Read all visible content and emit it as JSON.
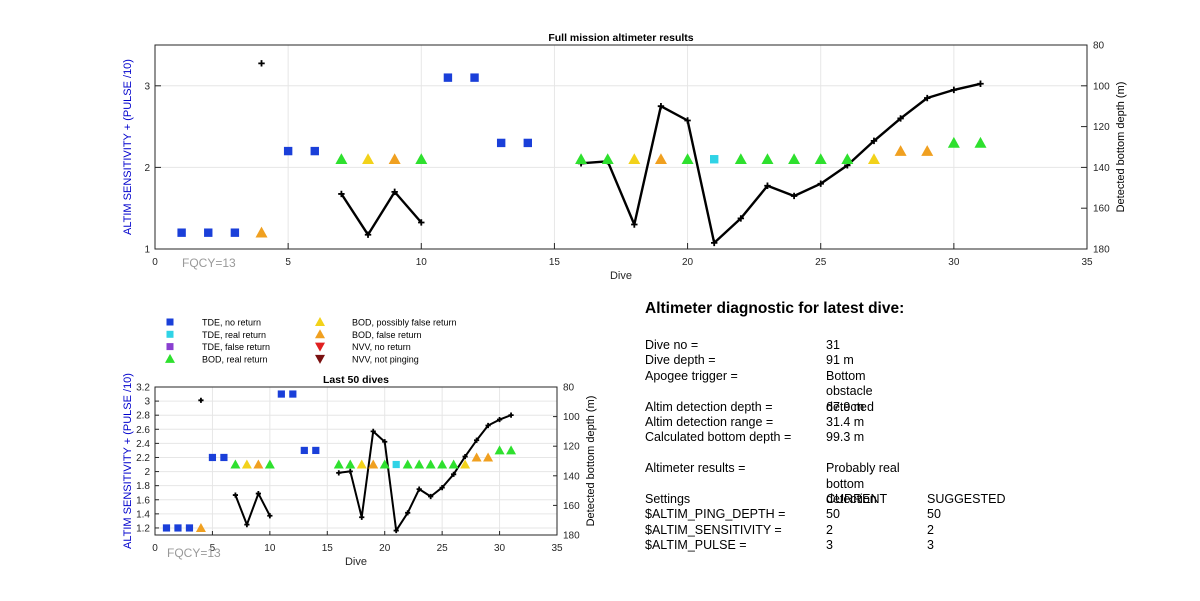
{
  "colors": {
    "blue_axis": "#0000cc",
    "tde_no_return": "#1a3fd9",
    "tde_real_return": "#2fd3e6",
    "tde_false_return": "#8a3fd0",
    "bod_real_return": "#2ee02e",
    "bod_possibly_false": "#f2d21a",
    "bod_false_return": "#f0a020",
    "nvv_no_return": "#e02020",
    "nvv_not_pinging": "#7a1010",
    "depth_line": "#000000",
    "grid": "#e6e6e6",
    "fqcy": "#999999"
  },
  "legend": [
    {
      "label": "TDE, no return",
      "marker": "square",
      "color_key": "tde_no_return"
    },
    {
      "label": "TDE, real return",
      "marker": "square",
      "color_key": "tde_real_return"
    },
    {
      "label": "TDE, false return",
      "marker": "square",
      "color_key": "tde_false_return"
    },
    {
      "label": "BOD, real return",
      "marker": "triangle-up",
      "color_key": "bod_real_return"
    },
    {
      "label": "BOD, possibly false return",
      "marker": "triangle-up",
      "color_key": "bod_possibly_false"
    },
    {
      "label": "BOD, false return",
      "marker": "triangle-up",
      "color_key": "bod_false_return"
    },
    {
      "label": "NVV, no return",
      "marker": "triangle-down",
      "color_key": "nvv_no_return"
    },
    {
      "label": "NVV, not pinging",
      "marker": "triangle-down",
      "color_key": "nvv_not_pinging"
    }
  ],
  "chart_data": [
    {
      "type": "scatter",
      "title": "Full mission altimeter results",
      "xlabel": "Dive",
      "ylabel": "ALTIM SENSITIVITY + (PULSE /10)",
      "y2label": "Detected bottom depth (m)",
      "xlim": [
        0,
        35
      ],
      "ylim": [
        1,
        3.5
      ],
      "y2lim": [
        80,
        180
      ],
      "y2_reversed": true,
      "xticks": [
        0,
        5,
        10,
        15,
        20,
        25,
        30,
        35
      ],
      "yticks": [
        1,
        2,
        3
      ],
      "y2ticks": [
        80,
        100,
        120,
        140,
        160,
        180
      ],
      "grid": true,
      "annotation": "FQCY=13"
    },
    {
      "type": "scatter",
      "title": "Last 50 dives",
      "xlabel": "Dive",
      "ylabel": "ALTIM SENSITIVITY + (PULSE /10)",
      "y2label": "Detected bottom depth (m)",
      "xlim": [
        0,
        35
      ],
      "ylim": [
        1.1,
        3.2
      ],
      "y2lim": [
        80,
        180
      ],
      "y2_reversed": true,
      "xticks": [
        0,
        5,
        10,
        15,
        20,
        25,
        30,
        35
      ],
      "yticks": [
        1.2,
        1.4,
        1.6,
        1.8,
        2,
        2.2,
        2.4,
        2.6,
        2.8,
        3,
        3.2
      ],
      "y2ticks": [
        80,
        100,
        120,
        140,
        160,
        180
      ],
      "grid": true,
      "annotation": "FQCY=13"
    }
  ],
  "shared_series": {
    "points": [
      {
        "dive": 1,
        "value": 1.2,
        "class": "tde_no_return"
      },
      {
        "dive": 2,
        "value": 1.2,
        "class": "tde_no_return"
      },
      {
        "dive": 3,
        "value": 1.2,
        "class": "tde_no_return"
      },
      {
        "dive": 4,
        "value": 1.2,
        "class": "bod_false_return"
      },
      {
        "dive": 5,
        "value": 2.2,
        "class": "tde_no_return"
      },
      {
        "dive": 6,
        "value": 2.2,
        "class": "tde_no_return"
      },
      {
        "dive": 7,
        "value": 2.1,
        "class": "bod_real_return"
      },
      {
        "dive": 8,
        "value": 2.1,
        "class": "bod_possibly_false"
      },
      {
        "dive": 9,
        "value": 2.1,
        "class": "bod_false_return"
      },
      {
        "dive": 10,
        "value": 2.1,
        "class": "bod_real_return"
      },
      {
        "dive": 11,
        "value": 3.1,
        "class": "tde_no_return"
      },
      {
        "dive": 12,
        "value": 3.1,
        "class": "tde_no_return"
      },
      {
        "dive": 13,
        "value": 2.3,
        "class": "tde_no_return"
      },
      {
        "dive": 14,
        "value": 2.3,
        "class": "tde_no_return"
      },
      {
        "dive": 16,
        "value": 2.1,
        "class": "bod_real_return"
      },
      {
        "dive": 17,
        "value": 2.1,
        "class": "bod_real_return"
      },
      {
        "dive": 18,
        "value": 2.1,
        "class": "bod_possibly_false"
      },
      {
        "dive": 19,
        "value": 2.1,
        "class": "bod_false_return"
      },
      {
        "dive": 20,
        "value": 2.1,
        "class": "bod_real_return"
      },
      {
        "dive": 21,
        "value": 2.1,
        "class": "tde_real_return"
      },
      {
        "dive": 22,
        "value": 2.1,
        "class": "bod_real_return"
      },
      {
        "dive": 23,
        "value": 2.1,
        "class": "bod_real_return"
      },
      {
        "dive": 24,
        "value": 2.1,
        "class": "bod_real_return"
      },
      {
        "dive": 25,
        "value": 2.1,
        "class": "bod_real_return"
      },
      {
        "dive": 26,
        "value": 2.1,
        "class": "bod_real_return"
      },
      {
        "dive": 27,
        "value": 2.1,
        "class": "bod_possibly_false"
      },
      {
        "dive": 28,
        "value": 2.2,
        "class": "bod_false_return"
      },
      {
        "dive": 29,
        "value": 2.2,
        "class": "bod_false_return"
      },
      {
        "dive": 30,
        "value": 2.3,
        "class": "bod_real_return"
      },
      {
        "dive": 31,
        "value": 2.3,
        "class": "bod_real_return"
      }
    ],
    "depth_segments": [
      [
        {
          "dive": 4,
          "depth": 89
        }
      ],
      [
        {
          "dive": 7,
          "depth": 153
        },
        {
          "dive": 8,
          "depth": 173
        },
        {
          "dive": 9,
          "depth": 152
        },
        {
          "dive": 10,
          "depth": 167
        }
      ],
      [
        {
          "dive": 16,
          "depth": 138
        },
        {
          "dive": 17,
          "depth": 137
        },
        {
          "dive": 18,
          "depth": 168
        },
        {
          "dive": 19,
          "depth": 110
        },
        {
          "dive": 20,
          "depth": 117
        },
        {
          "dive": 21,
          "depth": 177
        },
        {
          "dive": 22,
          "depth": 165
        },
        {
          "dive": 23,
          "depth": 149
        },
        {
          "dive": 24,
          "depth": 154
        },
        {
          "dive": 25,
          "depth": 148
        },
        {
          "dive": 26,
          "depth": 139
        },
        {
          "dive": 27,
          "depth": 127
        },
        {
          "dive": 28,
          "depth": 116
        },
        {
          "dive": 29,
          "depth": 106
        },
        {
          "dive": 30,
          "depth": 102
        },
        {
          "dive": 31,
          "depth": 99
        }
      ]
    ]
  },
  "diagnostic": {
    "title": "Altimeter diagnostic for latest dive:",
    "dive_no_label": "Dive no =",
    "dive_no_value": "31",
    "dive_depth_label": "Dive depth =",
    "dive_depth_value": "91 m",
    "apogee_label": "Apogee trigger =",
    "apogee_value": "Bottom obstacle detected",
    "altim_depth_label": "Altim detection depth =",
    "altim_depth_value": "67.9 m",
    "altim_range_label": "Altim detection range =",
    "altim_range_value": "31.4 m",
    "calc_depth_label": "Calculated bottom depth =",
    "calc_depth_value": "99.3 m",
    "results_label": "Altimeter results =",
    "results_value": "Probably real bottom detection",
    "settings_label": "Settings",
    "current_header": "CURRENT",
    "suggested_header": "SUGGESTED",
    "ping_depth_label": "$ALTIM_PING_DEPTH =",
    "ping_depth_current": "50",
    "ping_depth_suggested": "50",
    "sensitivity_label": "$ALTIM_SENSITIVITY =",
    "sensitivity_current": "2",
    "sensitivity_suggested": "2",
    "pulse_label": "$ALTIM_PULSE =",
    "pulse_current": "3",
    "pulse_suggested": "3"
  }
}
